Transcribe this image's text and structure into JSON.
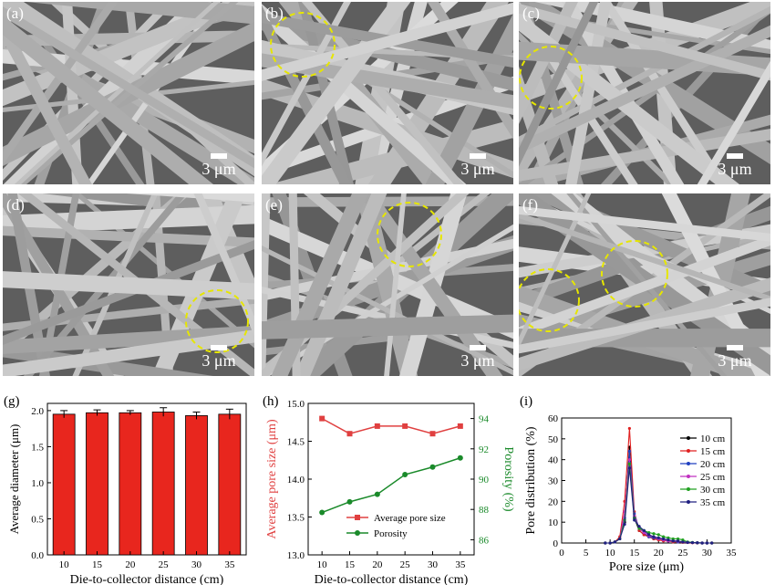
{
  "micrographs": [
    {
      "label": "(a)",
      "scale": "3 μm",
      "circles": 0
    },
    {
      "label": "(b)",
      "scale": "3 μm",
      "circles": 1
    },
    {
      "label": "(c)",
      "scale": "3 μm",
      "circles": 1
    },
    {
      "label": "(d)",
      "scale": "3 μm",
      "circles": 1
    },
    {
      "label": "(e)",
      "scale": "3 μm",
      "circles": 1
    },
    {
      "label": "(f)",
      "scale": "3 μm",
      "circles": 2
    }
  ],
  "colors": {
    "circle": "#e6e600",
    "bar": "#e8261e",
    "pore": "#e04040",
    "porosity": "#1a8a2a"
  },
  "chart_data": [
    {
      "type": "bar",
      "panel_label": "(g)",
      "categories": [
        "10",
        "15",
        "20",
        "25",
        "30",
        "35"
      ],
      "values": [
        1.95,
        1.97,
        1.97,
        1.98,
        1.93,
        1.95
      ],
      "errors": [
        0.05,
        0.04,
        0.03,
        0.06,
        0.05,
        0.07
      ],
      "xlabel": "Die-to-collector distance (cm)",
      "ylabel": "Average diameter (μm)",
      "ylim": [
        0.0,
        2.1
      ],
      "yticks": [
        "0.0",
        "0.5",
        "1.0",
        "1.5",
        "2.0"
      ]
    },
    {
      "type": "line",
      "panel_label": "(h)",
      "x": [
        10,
        15,
        20,
        25,
        30,
        35
      ],
      "xticks": [
        "10",
        "15",
        "20",
        "25",
        "30",
        "35"
      ],
      "xlabel": "Die-to-collector distance (cm)",
      "ylabel": "Average pore size (μm)",
      "ylabel_right": "Porosity (%)",
      "ylim": [
        13.0,
        15.0
      ],
      "yticks": [
        "13.0",
        "13.5",
        "14.0",
        "14.5",
        "15.0"
      ],
      "ylim_right": [
        85,
        95
      ],
      "yticks_right": [
        "86",
        "88",
        "90",
        "92",
        "94"
      ],
      "series": [
        {
          "name": "Average pore size",
          "axis": "left",
          "values": [
            14.8,
            14.6,
            14.7,
            14.7,
            14.6,
            14.7
          ]
        },
        {
          "name": "Porosity",
          "axis": "right",
          "values": [
            87.8,
            88.5,
            89.0,
            90.3,
            90.8,
            91.4
          ]
        }
      ],
      "legend": "lower-right"
    },
    {
      "type": "line",
      "panel_label": "(i)",
      "xlabel": "Pore size (μm)",
      "ylabel": "Pore distribution (%)",
      "xlim": [
        0,
        35
      ],
      "xticks": [
        "0",
        "5",
        "10",
        "15",
        "20",
        "25",
        "30",
        "35"
      ],
      "ylim": [
        0,
        60
      ],
      "yticks": [
        "0",
        "10",
        "20",
        "30",
        "40",
        "50",
        "60"
      ],
      "x": [
        9,
        10,
        11,
        12,
        13,
        14,
        15,
        16,
        17,
        18,
        19,
        20,
        21,
        22,
        23,
        24,
        25,
        26,
        27,
        28,
        29,
        30,
        31
      ],
      "series": [
        {
          "name": "10 cm",
          "color": "#000000",
          "values": [
            0,
            0,
            0.5,
            2,
            10,
            46,
            12,
            6,
            4,
            3,
            2,
            2,
            1.5,
            1,
            1,
            0.5,
            0.5,
            0.3,
            0.2,
            0.1,
            0,
            0,
            0
          ]
        },
        {
          "name": "15 cm",
          "color": "#e02020",
          "values": [
            0,
            0,
            0.5,
            3,
            20,
            55,
            15,
            6,
            4,
            3,
            2,
            1.5,
            1,
            1,
            0.5,
            0.5,
            0.3,
            0.2,
            0.1,
            0,
            0,
            0,
            0
          ]
        },
        {
          "name": "20 cm",
          "color": "#2040c0",
          "values": [
            0,
            0,
            0.5,
            2,
            12,
            44,
            14,
            7,
            5,
            3,
            2.5,
            2,
            1.5,
            1,
            1,
            0.5,
            0.5,
            0.3,
            0.2,
            0.1,
            0,
            0,
            0
          ]
        },
        {
          "name": "25 cm",
          "color": "#c030c0",
          "values": [
            0,
            0,
            0.5,
            2,
            15,
            40,
            13,
            7,
            5,
            3.5,
            3,
            2,
            1.5,
            1,
            1,
            0.8,
            0.5,
            0.3,
            0.2,
            0.1,
            0,
            0,
            0
          ]
        },
        {
          "name": "30 cm",
          "color": "#20a020",
          "values": [
            0,
            0,
            0.5,
            2,
            11,
            38,
            12,
            7,
            6,
            5,
            4.5,
            4,
            3,
            2.5,
            2,
            2,
            1.5,
            0.5,
            0.3,
            0.1,
            0,
            0,
            0
          ]
        },
        {
          "name": "35 cm",
          "color": "#202080",
          "values": [
            0,
            0,
            0.5,
            2,
            9,
            36,
            11,
            8,
            6,
            4,
            3,
            2.5,
            2,
            1.5,
            1,
            1,
            0.5,
            0.3,
            0.2,
            0.1,
            0,
            0,
            0
          ]
        }
      ],
      "legend": "top-right"
    }
  ]
}
